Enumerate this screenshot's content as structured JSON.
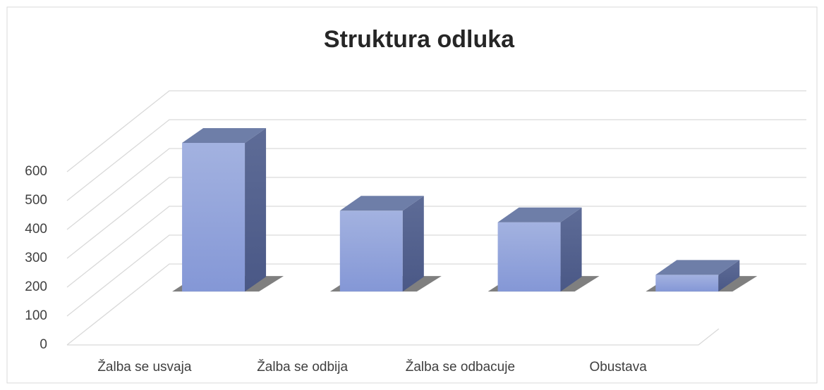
{
  "chart_data": {
    "type": "bar3d",
    "title": "Struktura odluka",
    "categories": [
      "Žalba se usvaja",
      "Žalba se odbija",
      "Žalba se odbacuje",
      "Obustava"
    ],
    "values": [
      515,
      280,
      240,
      58
    ],
    "color": "#8fa3dc",
    "ylim": [
      0,
      600
    ],
    "yticks": [
      0,
      100,
      200,
      300,
      400,
      500,
      600
    ],
    "grid": true
  }
}
